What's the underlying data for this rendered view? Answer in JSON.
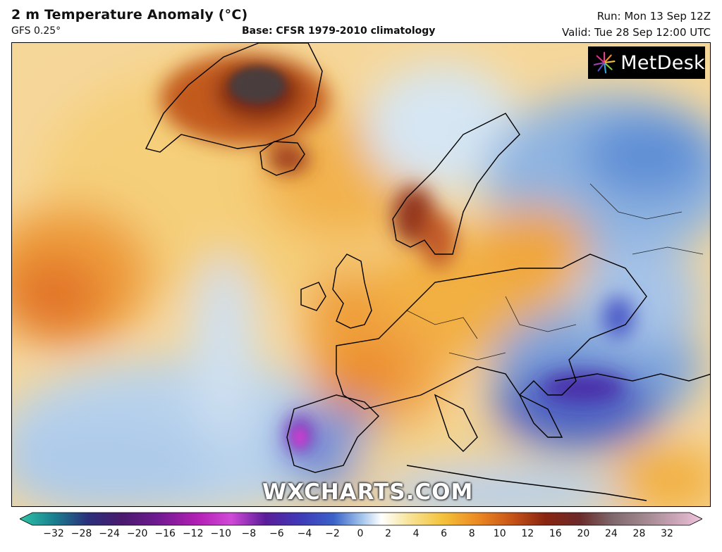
{
  "header": {
    "title": "2 m Temperature Anomaly (°C)",
    "model": "GFS 0.25°",
    "base": "Base: CFSR 1979-2010 climatology",
    "run": "Run: Mon 13 Sep 12Z",
    "valid": "Valid: Tue 28 Sep 12:00 UTC"
  },
  "logo": {
    "name": "MetDesk",
    "icon": "metdesk-burst-icon"
  },
  "watermark": "WXCHARTS.COM",
  "legend": {
    "ticks": [
      "−32",
      "−28",
      "−24",
      "−20",
      "−16",
      "−12",
      "−10",
      "−8",
      "−6",
      "−4",
      "−2",
      "0",
      "2",
      "4",
      "6",
      "8",
      "10",
      "12",
      "16",
      "20",
      "24",
      "28",
      "32"
    ],
    "colors": [
      "#2ec4a6",
      "#1a7f8f",
      "#2b2f7a",
      "#4a1a6e",
      "#6e1a8f",
      "#b21fb4",
      "#d04ad6",
      "#5a1d9a",
      "#3f39b8",
      "#3b62c8",
      "#7aa8e0",
      "#ffffff",
      "#f7e49a",
      "#f4c23a",
      "#ec8a22",
      "#c85518",
      "#8a2410",
      "#6b2a2a",
      "#806a6e",
      "#a58a92",
      "#c9a4b6",
      "#f0c4dc"
    ]
  }
}
